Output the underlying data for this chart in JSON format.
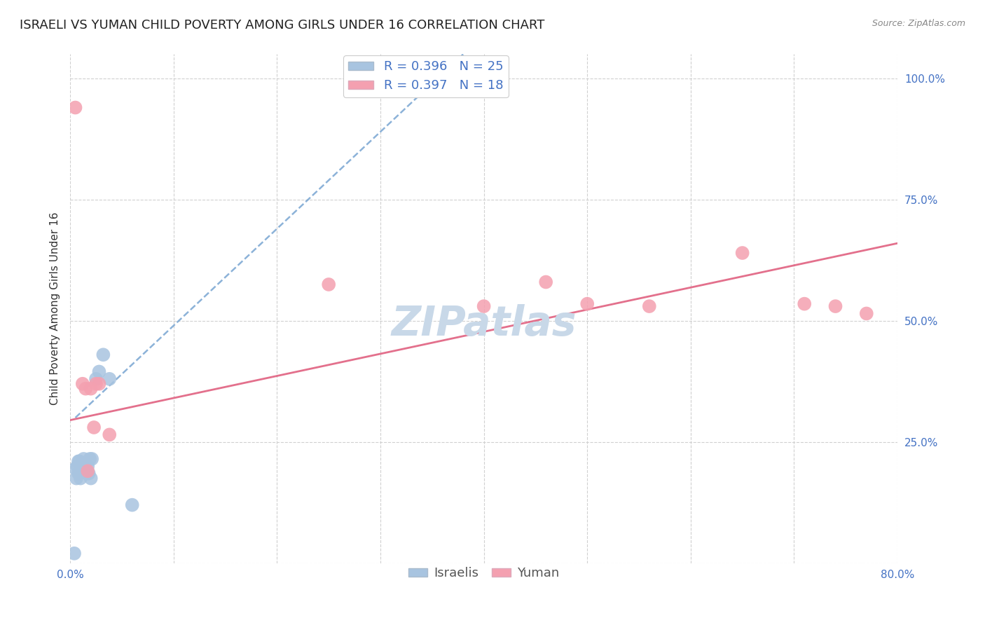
{
  "title": "ISRAELI VS YUMAN CHILD POVERTY AMONG GIRLS UNDER 16 CORRELATION CHART",
  "source": "Source: ZipAtlas.com",
  "ylabel": "Child Poverty Among Girls Under 16",
  "xlim": [
    0.0,
    0.8
  ],
  "ylim": [
    0.0,
    1.05
  ],
  "xticks": [
    0.0,
    0.1,
    0.2,
    0.3,
    0.4,
    0.5,
    0.6,
    0.7,
    0.8
  ],
  "xticklabels": [
    "0.0%",
    "",
    "",
    "",
    "",
    "",
    "",
    "",
    "80.0%"
  ],
  "yticks": [
    0.0,
    0.25,
    0.5,
    0.75,
    1.0
  ],
  "yticklabels": [
    "",
    "25.0%",
    "50.0%",
    "75.0%",
    "100.0%"
  ],
  "israeli_color": "#a8c4e0",
  "yuman_color": "#f4a0b0",
  "legend_label_1": "R = 0.396   N = 25",
  "legend_label_2": "R = 0.397   N = 18",
  "legend_group_1": "Israelis",
  "legend_group_2": "Yuman",
  "watermark": "ZIPatlas",
  "israeli_x": [
    0.004,
    0.005,
    0.006,
    0.007,
    0.008,
    0.008,
    0.009,
    0.01,
    0.01,
    0.011,
    0.012,
    0.013,
    0.014,
    0.015,
    0.016,
    0.017,
    0.018,
    0.019,
    0.02,
    0.021,
    0.025,
    0.028,
    0.032,
    0.038,
    0.06
  ],
  "israeli_y": [
    0.02,
    0.195,
    0.175,
    0.2,
    0.185,
    0.21,
    0.21,
    0.175,
    0.195,
    0.205,
    0.2,
    0.215,
    0.2,
    0.195,
    0.185,
    0.2,
    0.185,
    0.215,
    0.175,
    0.215,
    0.38,
    0.395,
    0.43,
    0.38,
    0.12
  ],
  "yuman_x": [
    0.005,
    0.012,
    0.015,
    0.017,
    0.02,
    0.023,
    0.025,
    0.028,
    0.038,
    0.25,
    0.4,
    0.46,
    0.5,
    0.56,
    0.65,
    0.71,
    0.74,
    0.77
  ],
  "yuman_y": [
    0.94,
    0.37,
    0.36,
    0.19,
    0.36,
    0.28,
    0.37,
    0.37,
    0.265,
    0.575,
    0.53,
    0.58,
    0.535,
    0.53,
    0.64,
    0.535,
    0.53,
    0.515
  ],
  "israeli_trendline_x": [
    0.005,
    0.38
  ],
  "israeli_trendline_y": [
    0.3,
    1.05
  ],
  "yuman_trendline_x": [
    0.0,
    0.8
  ],
  "yuman_trendline_y": [
    0.295,
    0.66
  ],
  "tick_color": "#4472c4",
  "title_fontsize": 13,
  "axis_label_fontsize": 11,
  "tick_fontsize": 11,
  "legend_fontsize": 13,
  "watermark_fontsize": 42,
  "watermark_color": "#c8d8e8",
  "grid_color": "#d0d0d0",
  "background_color": "#ffffff"
}
